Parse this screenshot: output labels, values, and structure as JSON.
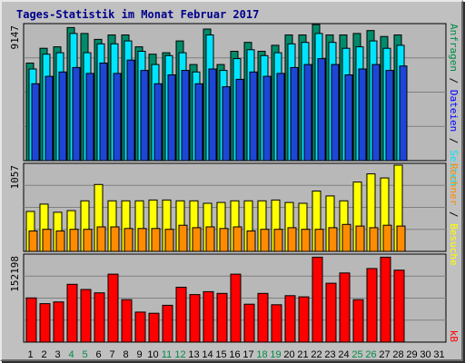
{
  "title": "Tages-Statistik im Monat Februar 2017",
  "colors": {
    "background": "#c0c0c0",
    "title": "#00008b",
    "hits": "#008b6b",
    "files": "#00e5ff",
    "pages": "#1e46d6",
    "visits": "#ffff00",
    "sites": "#ff8c00",
    "kbytes": "#ff0000",
    "weekend_label": "#008b45",
    "day_label": "#000000"
  },
  "chart_data": [
    {
      "type": "bar",
      "panel": "top",
      "ymax_label": "9147",
      "ylim": [
        0,
        9147
      ],
      "grid": true,
      "right_label": {
        "text": "Anfragen / Dateien / Seiten",
        "parts": [
          {
            "text": "Anfragen",
            "color": "#008b45"
          },
          {
            "text": " / ",
            "color": "#000000"
          },
          {
            "text": "Dateien",
            "color": "#0000ff"
          },
          {
            "text": " / ",
            "color": "#000000"
          },
          {
            "text": "Seiten",
            "color": "#00e5ff"
          }
        ]
      },
      "categories": [
        "1",
        "2",
        "3",
        "4",
        "5",
        "6",
        "7",
        "8",
        "9",
        "10",
        "11",
        "12",
        "13",
        "14",
        "15",
        "16",
        "17",
        "18",
        "19",
        "20",
        "21",
        "22",
        "23",
        "24",
        "25",
        "26",
        "27",
        "28",
        "29",
        "30",
        "31"
      ],
      "series": [
        {
          "name": "Anfragen",
          "color": "#008b6b",
          "values": [
            6600,
            7600,
            7700,
            9000,
            8600,
            8200,
            8500,
            8500,
            7700,
            7200,
            7300,
            8100,
            6500,
            8900,
            6500,
            7400,
            8000,
            7400,
            7800,
            8500,
            8500,
            9200,
            8500,
            8500,
            8600,
            8800,
            8400,
            8500,
            null,
            null,
            null
          ]
        },
        {
          "name": "Dateien",
          "color": "#00e5ff",
          "values": [
            6200,
            7200,
            7300,
            8600,
            7300,
            7900,
            7900,
            8100,
            7400,
            6500,
            7100,
            7300,
            6000,
            8500,
            6100,
            6900,
            7500,
            7100,
            7300,
            7900,
            8000,
            8600,
            8000,
            7600,
            7700,
            8100,
            7600,
            7800,
            null,
            null,
            null
          ]
        },
        {
          "name": "Seiten",
          "color": "#1e46d6",
          "values": [
            5200,
            5700,
            6000,
            6300,
            5900,
            6600,
            5900,
            6800,
            6100,
            5200,
            5800,
            6100,
            5200,
            6200,
            5000,
            5500,
            6000,
            5700,
            5900,
            6300,
            6500,
            6900,
            6500,
            5800,
            6200,
            6500,
            6100,
            6400,
            null,
            null,
            null
          ]
        }
      ]
    },
    {
      "type": "bar",
      "panel": "middle",
      "ymax_label": "1057",
      "ylim": [
        0,
        1057
      ],
      "grid": true,
      "right_label": {
        "text": "Rechner / Besuche",
        "parts": [
          {
            "text": "Rechner",
            "color": "#ff8c00"
          },
          {
            "text": " / ",
            "color": "#000000"
          },
          {
            "text": "Besuche",
            "color": "#ffff00"
          }
        ]
      },
      "categories": [
        "1",
        "2",
        "3",
        "4",
        "5",
        "6",
        "7",
        "8",
        "9",
        "10",
        "11",
        "12",
        "13",
        "14",
        "15",
        "16",
        "17",
        "18",
        "19",
        "20",
        "21",
        "22",
        "23",
        "24",
        "25",
        "26",
        "27",
        "28",
        "29",
        "30",
        "31"
      ],
      "series": [
        {
          "name": "Besuche",
          "color": "#ffff00",
          "values": [
            490,
            580,
            480,
            500,
            620,
            820,
            620,
            620,
            620,
            630,
            630,
            620,
            620,
            590,
            600,
            620,
            620,
            620,
            630,
            600,
            590,
            740,
            680,
            620,
            850,
            950,
            900,
            1057,
            null,
            null,
            null
          ]
        },
        {
          "name": "Rechner",
          "color": "#ff8c00",
          "values": [
            250,
            270,
            250,
            270,
            270,
            300,
            300,
            280,
            280,
            280,
            270,
            320,
            290,
            300,
            280,
            300,
            250,
            270,
            270,
            290,
            270,
            270,
            290,
            330,
            310,
            290,
            320,
            310,
            null,
            null,
            null
          ]
        }
      ]
    },
    {
      "type": "bar",
      "panel": "bottom",
      "ymax_label": "152198",
      "ylim": [
        0,
        152198
      ],
      "grid": true,
      "right_label": {
        "text": "kB",
        "parts": [
          {
            "text": "kB",
            "color": "#ff0000"
          }
        ]
      },
      "categories": [
        "1",
        "2",
        "3",
        "4",
        "5",
        "6",
        "7",
        "8",
        "9",
        "10",
        "11",
        "12",
        "13",
        "14",
        "15",
        "16",
        "17",
        "18",
        "19",
        "20",
        "21",
        "22",
        "23",
        "24",
        "25",
        "26",
        "27",
        "28",
        "29",
        "30",
        "31"
      ],
      "series": [
        {
          "name": "kB",
          "color": "#ff0000",
          "values": [
            78000,
            68000,
            71000,
            102000,
            93000,
            87000,
            120000,
            75000,
            53000,
            51000,
            65000,
            97000,
            84000,
            89000,
            86000,
            120000,
            67000,
            86000,
            66000,
            82000,
            80000,
            150000,
            104000,
            122000,
            75000,
            130000,
            150000,
            127000,
            null,
            null,
            null
          ]
        }
      ]
    }
  ],
  "x_axis": {
    "labels": [
      "1",
      "2",
      "3",
      "4",
      "5",
      "6",
      "7",
      "8",
      "9",
      "10",
      "11",
      "12",
      "13",
      "14",
      "15",
      "16",
      "17",
      "18",
      "19",
      "20",
      "21",
      "22",
      "23",
      "24",
      "25",
      "26",
      "27",
      "28",
      "29",
      "30",
      "31"
    ],
    "weekend_days": [
      4,
      5,
      11,
      12,
      18,
      19,
      25,
      26
    ]
  }
}
